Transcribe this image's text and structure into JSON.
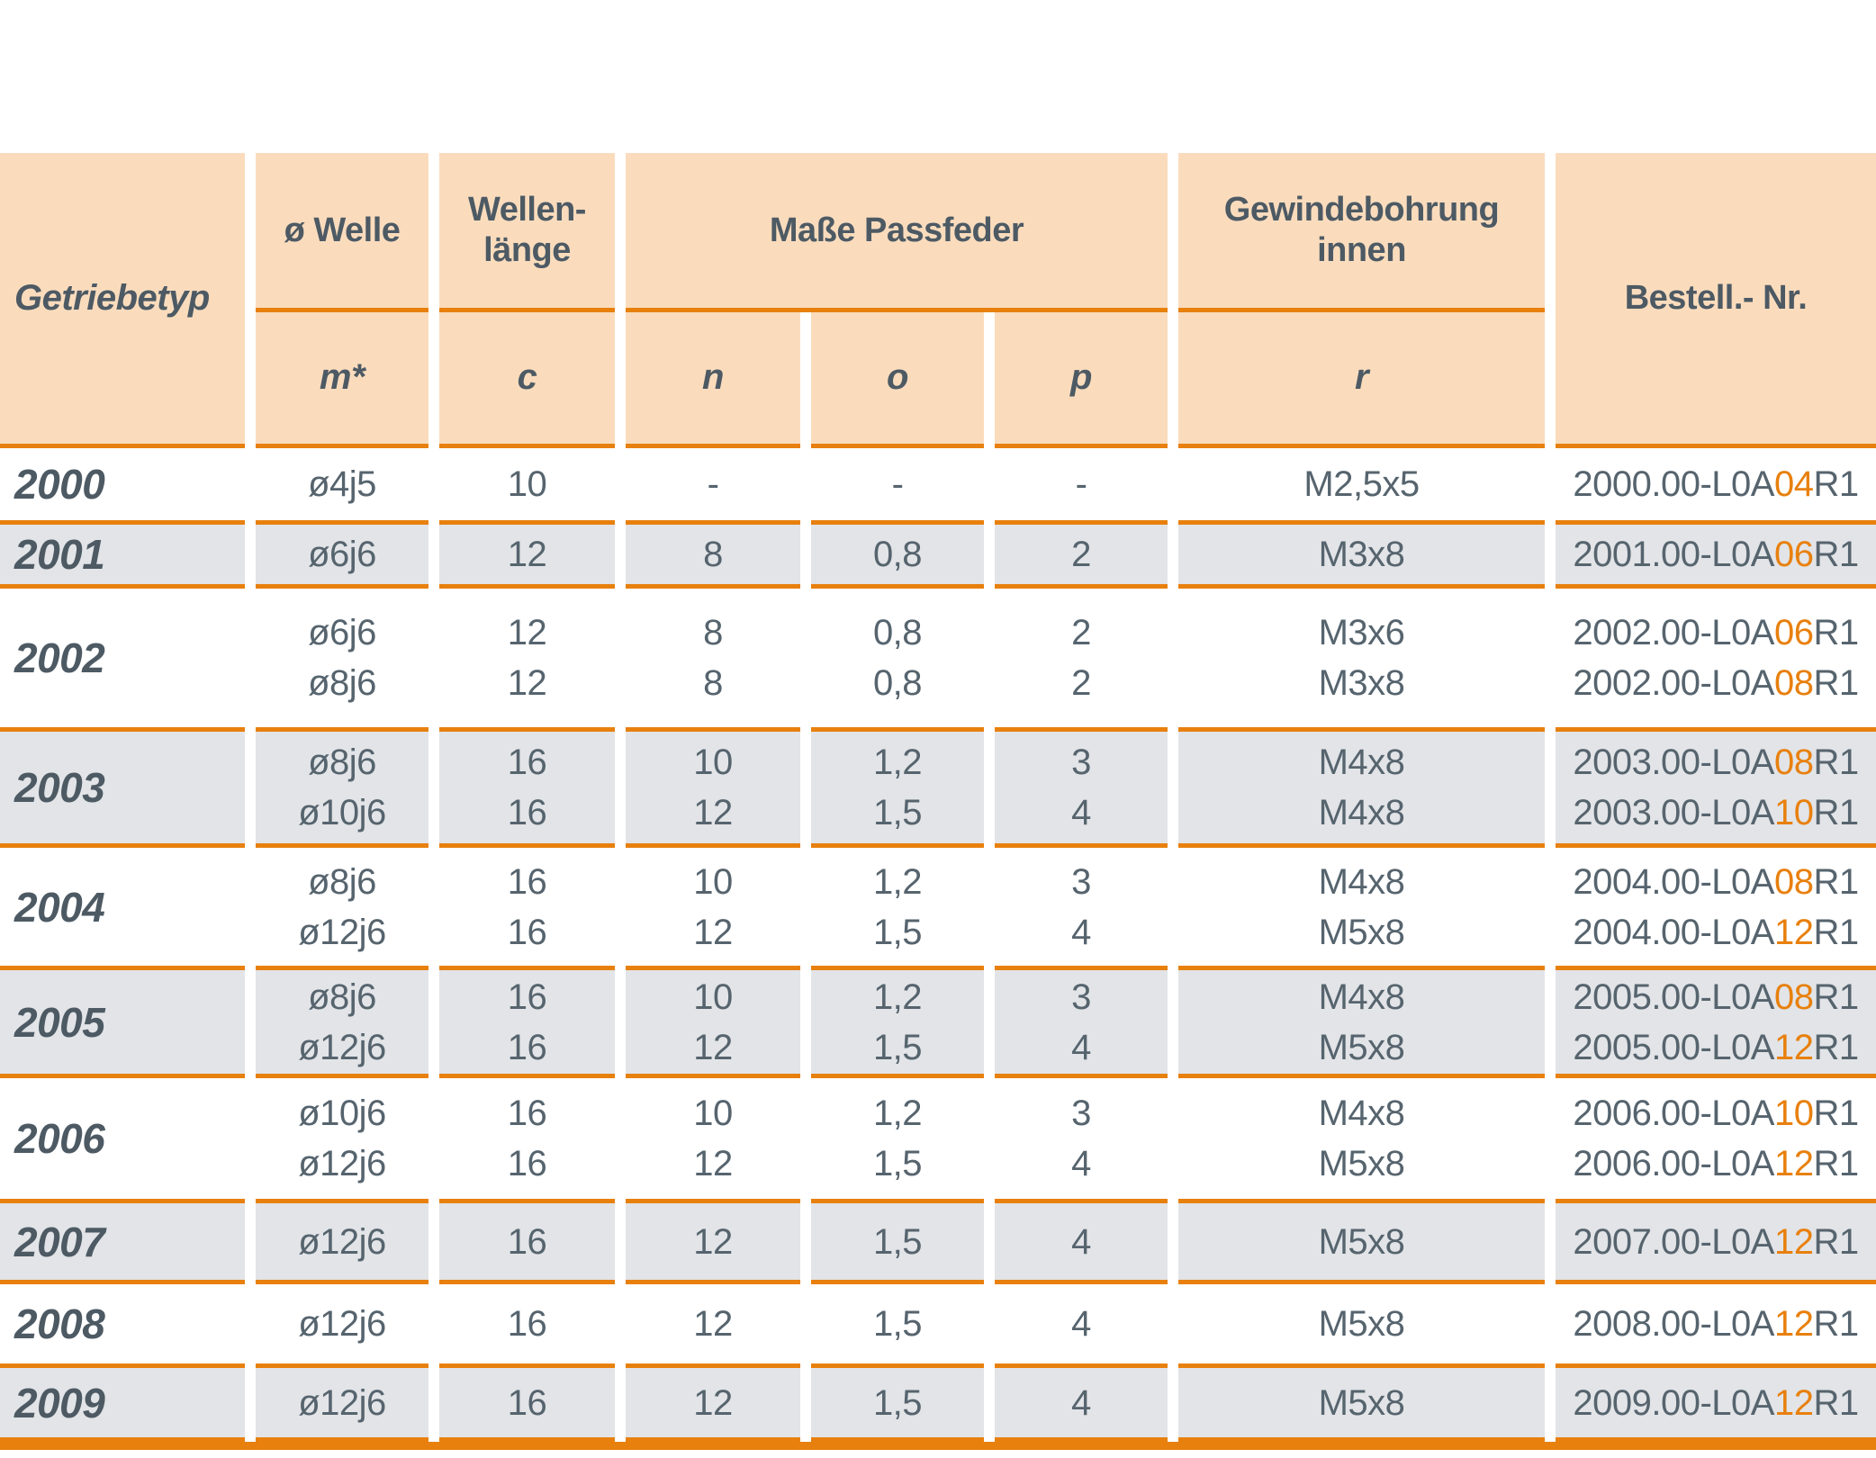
{
  "colors": {
    "header_bg": "#FADCBD",
    "shaded_row_bg": "#E2E4E7",
    "accent_orange": "#E8800E",
    "header_text": "#4D5A64",
    "data_text": "#56646E"
  },
  "header": {
    "getriebetyp": "Getriebetyp",
    "groups": [
      {
        "label": "ø Welle",
        "sub": [
          "m*"
        ]
      },
      {
        "label": "Wellen-\nlänge",
        "sub": [
          "c"
        ]
      },
      {
        "label": "Maße Passfeder",
        "sub": [
          "n",
          "o",
          "p"
        ]
      },
      {
        "label": "Gewindebohrung\ninnen",
        "sub": [
          "r"
        ]
      }
    ],
    "bestell": "Bestell.- Nr."
  },
  "rows": [
    {
      "year": "2000",
      "shaded": false,
      "m": [
        "ø4j5"
      ],
      "c": [
        "10"
      ],
      "n": [
        "-"
      ],
      "o": [
        "-"
      ],
      "p": [
        "-"
      ],
      "r": [
        "M2,5x5"
      ],
      "bestell": [
        {
          "pre": "2000.00-L0A",
          "accent": "04",
          "suffix": "R1"
        }
      ]
    },
    {
      "year": "2001",
      "shaded": true,
      "m": [
        "ø6j6"
      ],
      "c": [
        "12"
      ],
      "n": [
        "8"
      ],
      "o": [
        "0,8"
      ],
      "p": [
        "2"
      ],
      "r": [
        "M3x8"
      ],
      "bestell": [
        {
          "pre": "2001.00-L0A",
          "accent": "06",
          "suffix": "R1"
        }
      ]
    },
    {
      "year": "2002",
      "shaded": false,
      "m": [
        "ø6j6",
        "ø8j6"
      ],
      "c": [
        "12",
        "12"
      ],
      "n": [
        "8",
        "8"
      ],
      "o": [
        "0,8",
        "0,8"
      ],
      "p": [
        "2",
        "2"
      ],
      "r": [
        "M3x6",
        "M3x8"
      ],
      "bestell": [
        {
          "pre": "2002.00-L0A",
          "accent": "06",
          "suffix": "R1"
        },
        {
          "pre": "2002.00-L0A",
          "accent": "08",
          "suffix": "R1"
        }
      ]
    },
    {
      "year": "2003",
      "shaded": true,
      "m": [
        "ø8j6",
        "ø10j6"
      ],
      "c": [
        "16",
        "16"
      ],
      "n": [
        "10",
        "12"
      ],
      "o": [
        "1,2",
        "1,5"
      ],
      "p": [
        "3",
        "4"
      ],
      "r": [
        "M4x8",
        "M4x8"
      ],
      "bestell": [
        {
          "pre": "2003.00-L0A",
          "accent": "08",
          "suffix": "R1"
        },
        {
          "pre": "2003.00-L0A",
          "accent": "10",
          "suffix": "R1"
        }
      ]
    },
    {
      "year": "2004",
      "shaded": false,
      "m": [
        "ø8j6",
        "ø12j6"
      ],
      "c": [
        "16",
        "16"
      ],
      "n": [
        "10",
        "12"
      ],
      "o": [
        "1,2",
        "1,5"
      ],
      "p": [
        "3",
        "4"
      ],
      "r": [
        "M4x8",
        "M5x8"
      ],
      "bestell": [
        {
          "pre": "2004.00-L0A",
          "accent": "08",
          "suffix": "R1"
        },
        {
          "pre": "2004.00-L0A",
          "accent": "12",
          "suffix": "R1"
        }
      ]
    },
    {
      "year": "2005",
      "shaded": true,
      "m": [
        "ø8j6",
        "ø12j6"
      ],
      "c": [
        "16",
        "16"
      ],
      "n": [
        "10",
        "12"
      ],
      "o": [
        "1,2",
        "1,5"
      ],
      "p": [
        "3",
        "4"
      ],
      "r": [
        "M4x8",
        "M5x8"
      ],
      "bestell": [
        {
          "pre": "2005.00-L0A",
          "accent": "08",
          "suffix": "R1"
        },
        {
          "pre": "2005.00-L0A",
          "accent": "12",
          "suffix": "R1"
        }
      ]
    },
    {
      "year": "2006",
      "shaded": false,
      "m": [
        "ø10j6",
        "ø12j6"
      ],
      "c": [
        "16",
        "16"
      ],
      "n": [
        "10",
        "12"
      ],
      "o": [
        "1,2",
        "1,5"
      ],
      "p": [
        "3",
        "4"
      ],
      "r": [
        "M4x8",
        "M5x8"
      ],
      "bestell": [
        {
          "pre": "2006.00-L0A",
          "accent": "10",
          "suffix": "R1"
        },
        {
          "pre": "2006.00-L0A",
          "accent": "12",
          "suffix": "R1"
        }
      ]
    },
    {
      "year": "2007",
      "shaded": true,
      "m": [
        "ø12j6"
      ],
      "c": [
        "16"
      ],
      "n": [
        "12"
      ],
      "o": [
        "1,5"
      ],
      "p": [
        "4"
      ],
      "r": [
        "M5x8"
      ],
      "bestell": [
        {
          "pre": "2007.00-L0A",
          "accent": "12",
          "suffix": "R1"
        }
      ]
    },
    {
      "year": "2008",
      "shaded": false,
      "m": [
        "ø12j6"
      ],
      "c": [
        "16"
      ],
      "n": [
        "12"
      ],
      "o": [
        "1,5"
      ],
      "p": [
        "4"
      ],
      "r": [
        "M5x8"
      ],
      "bestell": [
        {
          "pre": "2008.00-L0A",
          "accent": "12",
          "suffix": "R1"
        }
      ]
    },
    {
      "year": "2009",
      "shaded": true,
      "m": [
        "ø12j6"
      ],
      "c": [
        "16"
      ],
      "n": [
        "12"
      ],
      "o": [
        "1,5"
      ],
      "p": [
        "4"
      ],
      "r": [
        "M5x8"
      ],
      "bestell": [
        {
          "pre": "2009.00-L0A",
          "accent": "12",
          "suffix": "R1"
        }
      ]
    }
  ]
}
